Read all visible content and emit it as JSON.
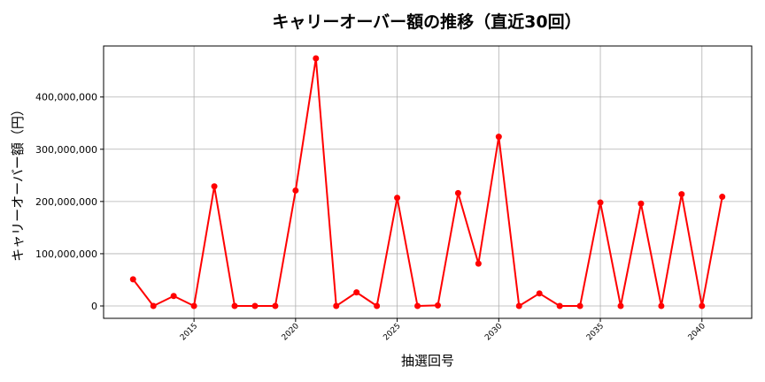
{
  "chart_data": {
    "type": "line",
    "title": "キャリーオーバー額の推移（直近30回）",
    "xlabel": "抽選回号",
    "ylabel": "キャリーオーバー額（円）",
    "x": [
      2012,
      2013,
      2014,
      2015,
      2016,
      2017,
      2018,
      2019,
      2020,
      2021,
      2022,
      2023,
      2024,
      2025,
      2026,
      2027,
      2028,
      2029,
      2030,
      2031,
      2032,
      2033,
      2034,
      2035,
      2036,
      2037,
      2038,
      2039,
      2040,
      2041
    ],
    "y": [
      51000000,
      0,
      19000000,
      0,
      229000000,
      0,
      0,
      0,
      221000000,
      474000000,
      0,
      26000000,
      0,
      207000000,
      0,
      1000000,
      216000000,
      81000000,
      324000000,
      0,
      24000000,
      0,
      0,
      198000000,
      0,
      196000000,
      0,
      214000000,
      0,
      209000000
    ],
    "xticks": [
      "2015",
      "2020",
      "2025",
      "2030",
      "2035",
      "2040"
    ],
    "yticks": [
      "0",
      "100,000,000",
      "200,000,000",
      "300,000,000",
      "400,000,000"
    ],
    "xlim": [
      2010.55,
      2042.45
    ],
    "ylim": [
      -23700000,
      497700000
    ],
    "grid": true,
    "line_color": "#ff0000",
    "marker_color": "#ff0000"
  }
}
